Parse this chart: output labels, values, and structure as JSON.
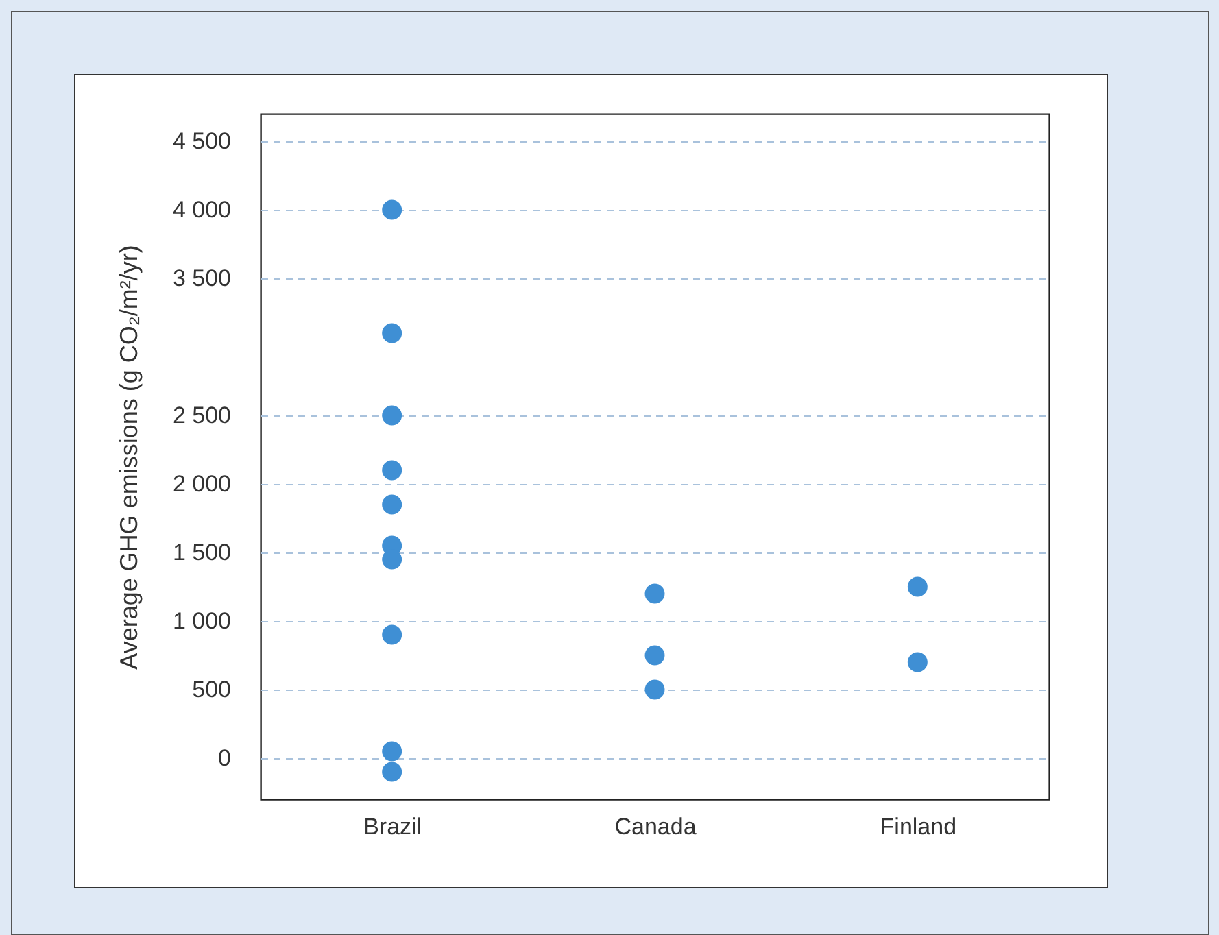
{
  "chart_data": {
    "type": "scatter",
    "ylabel": "Average GHG emissions  (g CO₂/m²/yr)",
    "categories": [
      "Brazil",
      "Canada",
      "Finland"
    ],
    "series": [
      {
        "color": "#3f8fd4",
        "x": [
          "Brazil",
          "Brazil",
          "Brazil",
          "Brazil",
          "Brazil",
          "Brazil",
          "Brazil",
          "Brazil",
          "Brazil",
          "Brazil",
          "Canada",
          "Canada",
          "Canada",
          "Finland",
          "Finland"
        ],
        "values": [
          4000,
          3100,
          2500,
          2100,
          1850,
          1550,
          1450,
          900,
          50,
          -100,
          1200,
          750,
          500,
          1250,
          700
        ]
      }
    ],
    "ylim": [
      -300,
      4700
    ],
    "yticks": [
      0,
      {
        "value": 500,
        "label": "500"
      },
      {
        "value": 1000,
        "label": "1 000"
      },
      {
        "value": 1500,
        "label": "1 500"
      },
      {
        "value": 2000,
        "label": "2 000"
      },
      {
        "value": 2500,
        "label": "2 500"
      },
      {
        "value": 3500,
        "label": "3 500"
      },
      {
        "value": 4000,
        "label": "4 000"
      },
      {
        "value": 4500,
        "label": "4 500"
      }
    ],
    "grid": "y",
    "marker": "circle"
  }
}
